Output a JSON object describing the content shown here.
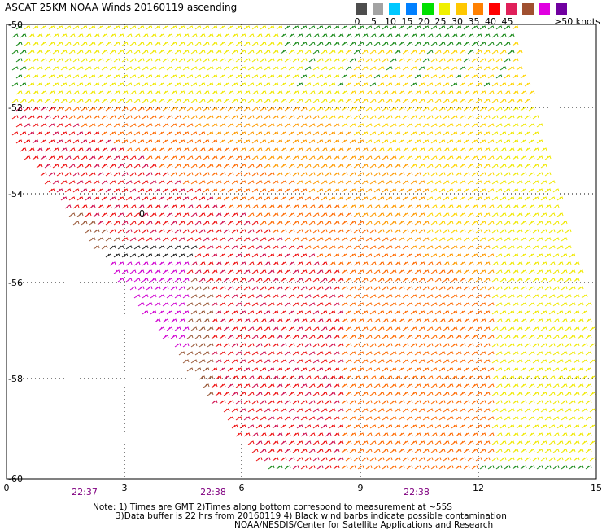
{
  "title": "ASCAT 25KM NOAA Winds 20160119 ascending",
  "legend": {
    "colors": [
      "#4d4d4d",
      "#a3a3a3",
      "#00c8ff",
      "#0080ff",
      "#00e000",
      "#f0f000",
      "#ffc800",
      "#ff8000",
      "#ff0000",
      "#e0205a",
      "#a05030",
      "#e000e0",
      "#7000a0"
    ],
    "labels": [
      "0",
      "5",
      "10",
      "15",
      "20",
      "25",
      "30",
      "35",
      "40",
      "45"
    ],
    "units": ">50 knots"
  },
  "map": {
    "lat_labels": [
      "-50",
      "-52",
      "-54",
      "-56",
      "-58",
      "-60"
    ],
    "lon_labels": [
      "0",
      "3",
      "6",
      "9",
      "12",
      "15"
    ],
    "times": [
      {
        "label": "22:37"
      },
      {
        "label": "22:38"
      },
      {
        "label": "22:38"
      }
    ],
    "center_symbol": "0"
  },
  "notes": {
    "line1": "Note: 1) Times are GMT 2)Times along bottom correspond to measurement at ~55S",
    "line2": "3)Data buffer is 22 hrs from 20160119 4) Black wind barbs indicate possible contamination",
    "line3": "NOAA/NESDIS/Center for Satellite Applications and Research"
  }
}
